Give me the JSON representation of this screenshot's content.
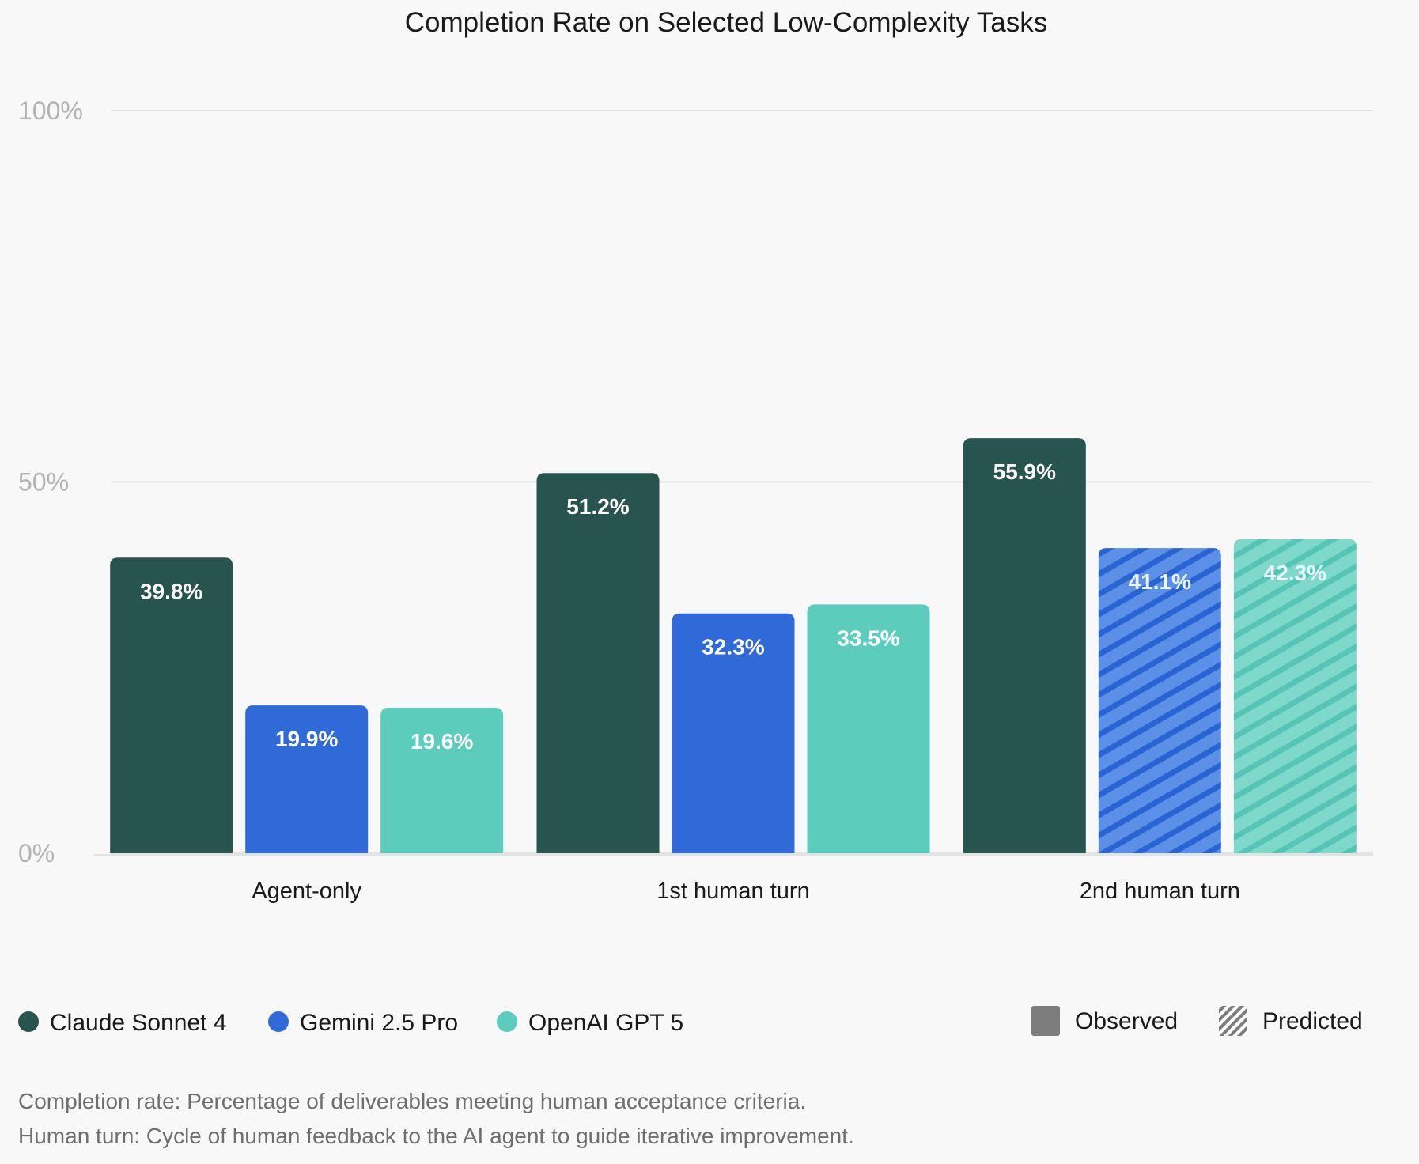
{
  "chart_data": {
    "type": "bar",
    "title": "Completion Rate on Selected Low-Complexity Tasks",
    "categories": [
      "Agent-only",
      "1st human turn",
      "2nd human turn"
    ],
    "ylim": [
      0,
      100
    ],
    "yticks": [
      {
        "value": 0,
        "label": "0%"
      },
      {
        "value": 50,
        "label": "50%"
      },
      {
        "value": 100,
        "label": "100%"
      }
    ],
    "grid": true,
    "legend_placement": "bottom",
    "series": [
      {
        "name": "Claude Sonnet 4",
        "color": "#285450",
        "values": [
          39.8,
          51.2,
          55.9
        ],
        "labels": [
          "39.8%",
          "51.2%",
          "55.9%"
        ],
        "predicted": [
          false,
          false,
          false
        ]
      },
      {
        "name": "Gemini 2.5 Pro",
        "color": "#2f6ad8",
        "values": [
          19.9,
          32.3,
          41.1
        ],
        "labels": [
          "19.9%",
          "32.3%",
          "41.1%"
        ],
        "predicted": [
          false,
          false,
          true
        ]
      },
      {
        "name": "OpenAI GPT 5",
        "color": "#5ccdbd",
        "values": [
          19.6,
          33.5,
          42.3
        ],
        "labels": [
          "19.6%",
          "33.5%",
          "42.3%"
        ],
        "predicted": [
          false,
          false,
          true
        ]
      }
    ],
    "style_legend": [
      {
        "name": "Observed",
        "pattern": "solid",
        "color": "#7d7d7d"
      },
      {
        "name": "Predicted",
        "pattern": "hatched",
        "color": "#7d7d7d"
      }
    ],
    "notes": [
      "Completion rate: Percentage of deliverables meeting human acceptance criteria.",
      "Human turn: Cycle of human feedback to the AI agent to guide iterative improvement."
    ]
  }
}
